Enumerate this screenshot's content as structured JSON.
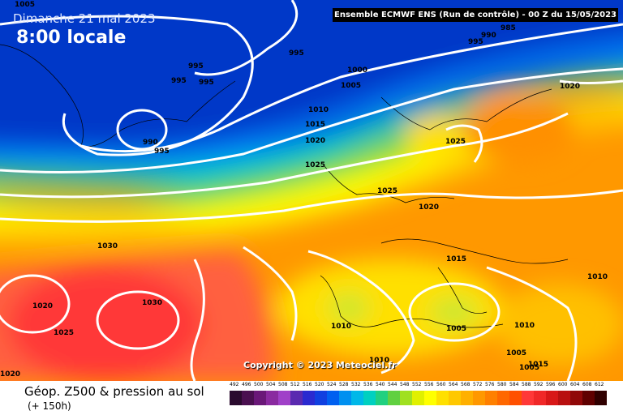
{
  "header": {
    "date": "Dimanche 21 mai 2023",
    "time": "8:00 locale",
    "run": "Ensemble ECMWF ENS  (Run de contrôle)   -  00 Z du 15/05/2023"
  },
  "footer": {
    "product": "Géop. Z500 & pression au sol",
    "lead": "(+ 150h)",
    "copyright": "Copyright © 2023 Meteociel.fr"
  },
  "isobar_labels": [
    "1005",
    "995",
    "990",
    "985",
    "995",
    "995",
    "995",
    "995",
    "1000",
    "1005",
    "1010",
    "1015",
    "1020",
    "1025",
    "990",
    "995",
    "1020",
    "1025",
    "1025",
    "1020",
    "1015",
    "1030",
    "1020",
    "1030",
    "1025",
    "1020",
    "1010",
    "1005",
    "1010",
    "1005",
    "1005",
    "1010",
    "1010",
    "1015"
  ],
  "legend": {
    "labels": [
      "492",
      "496",
      "500",
      "504",
      "508",
      "512",
      "516",
      "520",
      "524",
      "528",
      "532",
      "536",
      "540",
      "544",
      "548",
      "552",
      "556",
      "560",
      "564",
      "568",
      "572",
      "576",
      "580",
      "584",
      "588",
      "592",
      "596",
      "600",
      "604",
      "608",
      "612"
    ],
    "colors": [
      "#2a0a2e",
      "#4a1050",
      "#6a1878",
      "#8a2aa0",
      "#a040c8",
      "#5a2ab0",
      "#2a2ad0",
      "#1040e0",
      "#0060f0",
      "#0090f0",
      "#00b8e8",
      "#00d0c0",
      "#20d080",
      "#60d040",
      "#a0e020",
      "#e0f000",
      "#ffff00",
      "#ffe000",
      "#ffc800",
      "#ffb000",
      "#ff9800",
      "#ff8000",
      "#ff6800",
      "#ff5000",
      "#ff3838",
      "#f02828",
      "#d81818",
      "#b81010",
      "#900808",
      "#600000",
      "#300000"
    ]
  }
}
